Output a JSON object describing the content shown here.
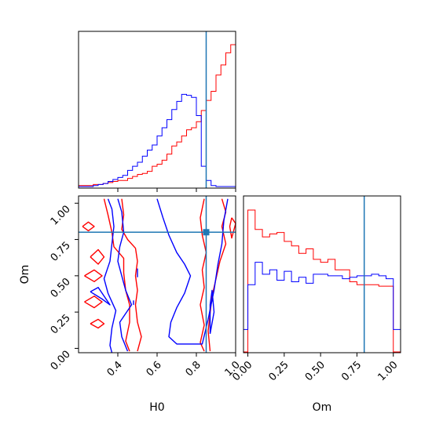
{
  "chart_data": [
    {
      "type": "step-histogram",
      "panel": "H0 marginal",
      "xlim": [
        0.2,
        1.0
      ],
      "x_ticks": [
        0.4,
        0.6,
        0.8,
        1.0
      ],
      "truth": 0.85,
      "bin_edges": [
        0.2,
        0.225,
        0.25,
        0.275,
        0.3,
        0.325,
        0.35,
        0.375,
        0.4,
        0.425,
        0.45,
        0.475,
        0.5,
        0.525,
        0.55,
        0.575,
        0.6,
        0.625,
        0.65,
        0.675,
        0.7,
        0.725,
        0.75,
        0.775,
        0.8,
        0.825,
        0.85,
        0.875,
        0.9,
        0.925,
        0.95,
        0.975,
        1.0
      ],
      "series": [
        {
          "color": "#ff0000",
          "values": [
            1,
            1,
            1,
            2,
            2,
            3,
            4,
            5,
            6,
            6,
            8,
            10,
            12,
            13,
            15,
            20,
            22,
            26,
            32,
            40,
            44,
            50,
            56,
            58,
            64,
            75,
            85,
            94,
            110,
            120,
            132,
            140,
            0
          ],
          "values_note": ""
        },
        {
          "color": "#0000ff",
          "values": [
            0,
            0,
            0,
            1,
            2,
            3,
            5,
            7,
            9,
            11,
            16,
            20,
            24,
            30,
            36,
            41,
            50,
            58,
            66,
            76,
            84,
            91,
            90,
            88,
            70,
            20,
            6,
            1,
            0,
            0,
            0,
            0,
            0
          ]
        }
      ]
    },
    {
      "type": "contour",
      "panel": "H0 vs Om joint",
      "xlabel": "H0",
      "ylabel": "Om",
      "xlim": [
        0.2,
        1.0
      ],
      "ylim": [
        -0.03,
        1.05
      ],
      "x_ticks": [
        0.4,
        0.6,
        0.8,
        1.0
      ],
      "y_ticks": [
        0.0,
        0.25,
        0.5,
        0.75,
        1.0
      ],
      "x_tick_labels": [
        "0.4",
        "0.6",
        "0.8",
        "1.0"
      ],
      "y_tick_labels": [
        "0.00",
        "0.25",
        "0.50",
        "0.75",
        "1.00"
      ],
      "truth": {
        "x": 0.85,
        "y": 0.8
      },
      "series": [
        {
          "color": "#ff0000",
          "contours": [
            [
              [
                0.33,
                1.03
              ],
              [
                0.35,
                0.92
              ],
              [
                0.37,
                0.8
              ],
              [
                0.38,
                0.7
              ],
              [
                0.43,
                0.62
              ],
              [
                0.43,
                0.52
              ],
              [
                0.44,
                0.4
              ],
              [
                0.46,
                0.3
              ],
              [
                0.46,
                0.18
              ],
              [
                0.44,
                0.05
              ],
              [
                0.46,
                -0.02
              ]
            ],
            [
              [
                0.42,
                1.03
              ],
              [
                0.43,
                0.92
              ],
              [
                0.42,
                0.82
              ],
              [
                0.45,
                0.75
              ],
              [
                0.49,
                0.69
              ],
              [
                0.5,
                0.6
              ],
              [
                0.49,
                0.5
              ],
              [
                0.5,
                0.4
              ],
              [
                0.49,
                0.3
              ],
              [
                0.5,
                0.18
              ],
              [
                0.52,
                0.08
              ],
              [
                0.5,
                -0.02
              ]
            ],
            [
              [
                0.84,
                1.03
              ],
              [
                0.82,
                0.9
              ],
              [
                0.83,
                0.78
              ],
              [
                0.85,
                0.66
              ],
              [
                0.83,
                0.54
              ],
              [
                0.84,
                0.42
              ],
              [
                0.82,
                0.3
              ],
              [
                0.84,
                0.16
              ],
              [
                0.82,
                0.04
              ],
              [
                0.84,
                -0.02
              ]
            ],
            [
              [
                0.93,
                1.03
              ],
              [
                0.95,
                0.94
              ],
              [
                0.93,
                0.84
              ],
              [
                0.95,
                0.72
              ],
              [
                0.92,
                0.6
              ],
              [
                0.9,
                0.48
              ],
              [
                0.88,
                0.36
              ],
              [
                0.87,
                0.24
              ],
              [
                0.86,
                0.12
              ],
              [
                0.87,
                -0.02
              ]
            ],
            [
              [
                0.22,
                0.84
              ],
              [
                0.25,
                0.81
              ],
              [
                0.28,
                0.84
              ],
              [
                0.25,
                0.87
              ],
              [
                0.22,
                0.84
              ]
            ],
            [
              [
                0.26,
                0.63
              ],
              [
                0.3,
                0.58
              ],
              [
                0.33,
                0.63
              ],
              [
                0.3,
                0.68
              ],
              [
                0.26,
                0.63
              ]
            ],
            [
              [
                0.23,
                0.5
              ],
              [
                0.28,
                0.46
              ],
              [
                0.32,
                0.5
              ],
              [
                0.28,
                0.54
              ],
              [
                0.23,
                0.5
              ]
            ],
            [
              [
                0.23,
                0.32
              ],
              [
                0.28,
                0.28
              ],
              [
                0.32,
                0.32
              ],
              [
                0.28,
                0.36
              ],
              [
                0.23,
                0.32
              ]
            ],
            [
              [
                0.26,
                0.17
              ],
              [
                0.3,
                0.14
              ],
              [
                0.33,
                0.17
              ],
              [
                0.3,
                0.2
              ],
              [
                0.26,
                0.17
              ]
            ],
            [
              [
                0.98,
                0.9
              ],
              [
                1.0,
                0.86
              ],
              [
                0.98,
                0.76
              ],
              [
                0.97,
                0.84
              ],
              [
                0.98,
                0.9
              ]
            ]
          ]
        },
        {
          "color": "#0000ff",
          "contours": [
            [
              [
                0.35,
                1.03
              ],
              [
                0.37,
                0.96
              ],
              [
                0.38,
                0.84
              ],
              [
                0.37,
                0.72
              ],
              [
                0.36,
                0.6
              ],
              [
                0.33,
                0.48
              ],
              [
                0.35,
                0.38
              ],
              [
                0.39,
                0.26
              ],
              [
                0.37,
                0.14
              ],
              [
                0.36,
                0.02
              ],
              [
                0.37,
                -0.03
              ]
            ],
            [
              [
                0.4,
                1.03
              ],
              [
                0.42,
                0.94
              ],
              [
                0.43,
                0.8
              ],
              [
                0.41,
                0.7
              ],
              [
                0.4,
                0.6
              ],
              [
                0.42,
                0.5
              ],
              [
                0.44,
                0.4
              ],
              [
                0.47,
                0.3
              ],
              [
                0.41,
                0.18
              ],
              [
                0.42,
                0.08
              ],
              [
                0.45,
                -0.02
              ]
            ],
            [
              [
                0.6,
                1.03
              ],
              [
                0.63,
                0.9
              ],
              [
                0.66,
                0.78
              ],
              [
                0.7,
                0.66
              ],
              [
                0.74,
                0.58
              ],
              [
                0.77,
                0.5
              ],
              [
                0.74,
                0.38
              ],
              [
                0.7,
                0.28
              ],
              [
                0.67,
                0.18
              ],
              [
                0.66,
                0.08
              ],
              [
                0.7,
                0.03
              ],
              [
                0.83,
                0.03
              ],
              [
                0.86,
                0.2
              ],
              [
                0.89,
                0.4
              ],
              [
                0.91,
                0.58
              ],
              [
                0.93,
                0.72
              ],
              [
                0.94,
                0.88
              ],
              [
                0.96,
                1.03
              ]
            ],
            [
              [
                0.26,
                0.39
              ],
              [
                0.32,
                0.34
              ],
              [
                0.36,
                0.3
              ],
              [
                0.3,
                0.42
              ],
              [
                0.26,
                0.39
              ]
            ],
            [
              [
                0.5,
                0.55
              ],
              [
                0.5,
                0.49
              ]
            ],
            [
              [
                0.48,
                0.33
              ],
              [
                0.48,
                0.3
              ]
            ],
            [
              [
                0.87,
                0.1
              ],
              [
                0.89,
                0.25
              ],
              [
                0.88,
                0.4
              ],
              [
                0.87,
                0.3
              ],
              [
                0.87,
                0.1
              ]
            ]
          ]
        }
      ]
    },
    {
      "type": "step-histogram",
      "panel": "Om marginal",
      "xlabel": "Om",
      "xlim": [
        -0.03,
        1.05
      ],
      "x_ticks": [
        0.0,
        0.25,
        0.5,
        0.75,
        1.0
      ],
      "x_tick_labels": [
        "0.00",
        "0.25",
        "0.50",
        "0.75",
        "1.00"
      ],
      "truth": 0.8,
      "bin_edges": [
        -0.03,
        0.0,
        0.05,
        0.1,
        0.15,
        0.2,
        0.25,
        0.3,
        0.35,
        0.4,
        0.45,
        0.5,
        0.55,
        0.6,
        0.65,
        0.7,
        0.75,
        0.8,
        0.85,
        0.9,
        0.95,
        1.0,
        1.05
      ],
      "series": [
        {
          "color": "#ff0000",
          "values": [
            0,
            0.95,
            0.82,
            0.77,
            0.79,
            0.8,
            0.74,
            0.71,
            0.66,
            0.69,
            0.62,
            0.6,
            0.62,
            0.55,
            0.55,
            0.47,
            0.45,
            0.45,
            0.45,
            0.44,
            0.44,
            0
          ]
        },
        {
          "color": "#0000ff",
          "values": [
            0.15,
            0.45,
            0.6,
            0.52,
            0.55,
            0.48,
            0.54,
            0.47,
            0.5,
            0.46,
            0.52,
            0.52,
            0.51,
            0.51,
            0.49,
            0.5,
            0.51,
            0.51,
            0.52,
            0.51,
            0.49,
            0.15
          ]
        }
      ]
    }
  ],
  "accent": "#1f77b4"
}
